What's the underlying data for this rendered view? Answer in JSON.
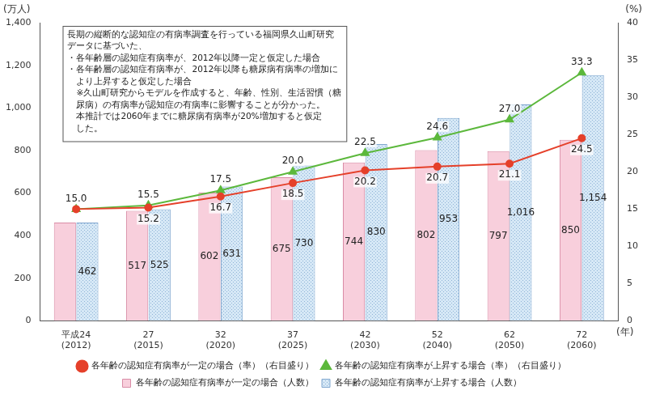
{
  "chart_data": {
    "type": "bar",
    "categories": [
      "平成24\n(2012)",
      "27\n(2015)",
      "32\n(2020)",
      "37\n(2025)",
      "42\n(2030)",
      "52\n(2040)",
      "62\n(2050)",
      "72\n(2060)"
    ],
    "x_label": "(年)",
    "y_label": "(万人)",
    "y2_label": "(%)",
    "ylim": [
      0,
      1400
    ],
    "yticks": [
      0,
      200,
      400,
      600,
      800,
      {
        "value": 1000,
        "label": "1,000"
      },
      {
        "value": 1200,
        "label": "1,200"
      },
      {
        "value": 1400,
        "label": "1,400"
      }
    ],
    "y2lim": [
      0,
      40
    ],
    "y2ticks": [
      0,
      5,
      10,
      15,
      20,
      25,
      30,
      35,
      40
    ],
    "grid": false,
    "legend": "bottom",
    "data_labels": true,
    "annotation": [
      "長期の縦断的な認知症の有病率調査を行っている福岡県久山町研究",
      "データに基づいた、",
      "・各年齢層の認知症有病率が、2012年以降一定と仮定した場合",
      "・各年齢層の認知症有病率が、2012年以降も糖尿病有病率の増加に",
      "　より上昇すると仮定した場合",
      "　※久山町研究からモデルを作成すると、年齢、性別、生活習慣（糖",
      "　尿病）の有病率が認知症の有病率に影響することが分かった。",
      "　本推計では2060年までに糖尿病有病率が20%増加すると仮定",
      "　した。"
    ],
    "series": [
      {
        "name": "各年齢の認知症有病率が一定の場合（人数）",
        "type": "bar",
        "color": "#f8cfdc",
        "values": [
          462,
          517,
          602,
          675,
          744,
          802,
          797,
          850
        ],
        "value_labels": [
          null,
          "517",
          "602",
          "675",
          "744",
          "802",
          "797",
          "850"
        ]
      },
      {
        "name": "各年齢の認知症有病率が上昇する場合（人数）",
        "type": "bar",
        "color": "#d6e8f6",
        "values": [
          462,
          525,
          631,
          730,
          830,
          953,
          1016,
          1154
        ],
        "value_labels": [
          "462",
          "525",
          "631",
          "730",
          "830",
          "953",
          "1,016",
          "1,154"
        ]
      },
      {
        "name": "各年齢の認知症有病率が一定の場合（率）（右目盛り）",
        "type": "line",
        "axis": "y2",
        "color": "#e5402a",
        "marker": "circle",
        "line_style": "solid",
        "values": [
          15.0,
          15.2,
          16.7,
          18.5,
          20.2,
          20.7,
          21.1,
          24.5
        ],
        "value_labels": [
          null,
          "15.2",
          "16.7",
          "18.5",
          "20.2",
          "20.7",
          "21.1",
          "24.5"
        ]
      },
      {
        "name": "各年齢の認知症有病率が上昇する場合（率）（右目盛り）",
        "type": "line",
        "axis": "y2",
        "color": "#5cb83c",
        "marker": "triangle",
        "line_style": "solid",
        "values": [
          15.0,
          15.5,
          17.5,
          20.0,
          22.5,
          24.6,
          27.0,
          33.3
        ],
        "value_labels": [
          "15.0",
          "15.5",
          "17.5",
          "20.0",
          "22.5",
          "24.6",
          "27.0",
          "33.3"
        ]
      }
    ]
  }
}
